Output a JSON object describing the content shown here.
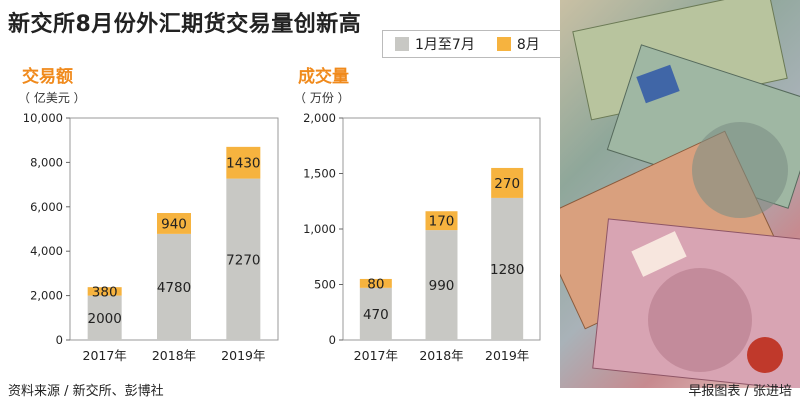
{
  "title": "新交所8月份外汇期货交易量创新高",
  "legend": {
    "a": "1月至7月",
    "b": "8月"
  },
  "colors": {
    "jan_jul": "#c8c8c4",
    "aug": "#f6b33f",
    "chart_title": "#f08a1c",
    "bg_panel": "#ffffff"
  },
  "footer": {
    "source": "资料来源 / 新交所、彭博社",
    "credit": "早报图表 / 张进培"
  },
  "chart_data": [
    {
      "type": "bar",
      "stacked": true,
      "title": "交易额",
      "unit": "（ 亿美元 ）",
      "categories": [
        "2017年",
        "2018年",
        "2019年"
      ],
      "series": [
        {
          "name": "1月至7月",
          "values": [
            2000,
            4780,
            7270
          ]
        },
        {
          "name": "8月",
          "values": [
            380,
            940,
            1430
          ]
        }
      ],
      "ylim": [
        0,
        10000
      ],
      "yticks": [
        0,
        2000,
        4000,
        6000,
        8000,
        10000
      ],
      "ytick_labels": [
        "0",
        "2,000",
        "4,000",
        "6,000",
        "8,000",
        "10,000"
      ]
    },
    {
      "type": "bar",
      "stacked": true,
      "title": "成交量",
      "unit": "（ 万份 ）",
      "categories": [
        "2017年",
        "2018年",
        "2019年"
      ],
      "series": [
        {
          "name": "1月至7月",
          "values": [
            470,
            990,
            1280
          ]
        },
        {
          "name": "8月",
          "values": [
            80,
            170,
            270
          ]
        }
      ],
      "ylim": [
        0,
        2000
      ],
      "yticks": [
        0,
        500,
        1000,
        1500,
        2000
      ],
      "ytick_labels": [
        "0",
        "500",
        "1,000",
        "1,500",
        "2,000"
      ]
    }
  ]
}
